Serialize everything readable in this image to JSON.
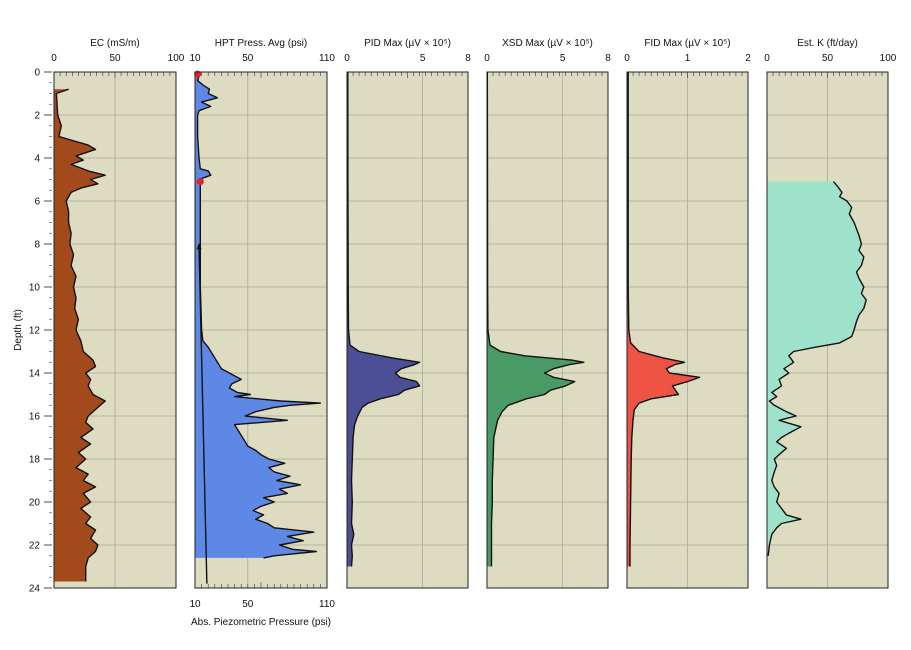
{
  "chart_data": {
    "type": "line",
    "depth_axis": {
      "label": "Depth (ft)",
      "ticks": [
        "0",
        "2",
        "4",
        "6",
        "8",
        "10",
        "12",
        "14",
        "16",
        "18",
        "20",
        "22",
        "24"
      ],
      "range": [
        0,
        24
      ]
    },
    "panels": [
      {
        "id": "ec",
        "title": "EC (mS/m)",
        "top_ticks": [
          "0",
          "50",
          "100"
        ],
        "range": [
          0,
          100
        ],
        "fill_color": "#a24a1c",
        "series": [
          [
            0.8,
            12
          ],
          [
            1.0,
            2
          ],
          [
            2.0,
            3
          ],
          [
            2.5,
            6
          ],
          [
            3.0,
            4
          ],
          [
            3.4,
            28
          ],
          [
            3.6,
            34
          ],
          [
            3.9,
            18
          ],
          [
            4.1,
            24
          ],
          [
            4.3,
            14
          ],
          [
            4.6,
            28
          ],
          [
            4.8,
            42
          ],
          [
            5.0,
            30
          ],
          [
            5.2,
            36
          ],
          [
            5.4,
            22
          ],
          [
            5.6,
            14
          ],
          [
            6.0,
            10
          ],
          [
            6.5,
            12
          ],
          [
            7.0,
            12
          ],
          [
            7.5,
            14
          ],
          [
            8.0,
            13
          ],
          [
            8.5,
            16
          ],
          [
            9.0,
            14
          ],
          [
            9.5,
            18
          ],
          [
            10.0,
            16
          ],
          [
            10.5,
            18
          ],
          [
            11.0,
            17
          ],
          [
            11.5,
            20
          ],
          [
            12.0,
            18
          ],
          [
            12.5,
            22
          ],
          [
            13.0,
            24
          ],
          [
            13.4,
            32
          ],
          [
            13.7,
            34
          ],
          [
            14.0,
            26
          ],
          [
            14.3,
            30
          ],
          [
            14.6,
            28
          ],
          [
            15.0,
            32
          ],
          [
            15.3,
            42
          ],
          [
            15.6,
            36
          ],
          [
            16.0,
            28
          ],
          [
            16.3,
            26
          ],
          [
            16.6,
            32
          ],
          [
            17.0,
            22
          ],
          [
            17.3,
            30
          ],
          [
            17.7,
            20
          ],
          [
            18.0,
            26
          ],
          [
            18.4,
            18
          ],
          [
            18.7,
            28
          ],
          [
            19.0,
            24
          ],
          [
            19.3,
            34
          ],
          [
            19.6,
            24
          ],
          [
            20.0,
            30
          ],
          [
            20.3,
            22
          ],
          [
            20.7,
            30
          ],
          [
            21.0,
            26
          ],
          [
            21.3,
            34
          ],
          [
            21.7,
            30
          ],
          [
            22.0,
            36
          ],
          [
            22.3,
            34
          ],
          [
            22.6,
            28
          ],
          [
            23.0,
            26
          ],
          [
            23.5,
            26
          ],
          [
            23.7,
            26
          ]
        ]
      },
      {
        "id": "hpt",
        "title": "HPT Press. Avg (psi)",
        "top_ticks": [
          "10",
          "50",
          "110"
        ],
        "bottom_ticks": [
          "10",
          "50",
          "110"
        ],
        "bottom_label": "Abs. Piezometric Pressure (psi)",
        "range": [
          10,
          110
        ],
        "fill_color": "#5e88e6",
        "series": [
          [
            0,
            12
          ],
          [
            0.2,
            13
          ],
          [
            0.4,
            12
          ],
          [
            0.6,
            16
          ],
          [
            0.8,
            21
          ],
          [
            1.0,
            20
          ],
          [
            1.2,
            27
          ],
          [
            1.4,
            15
          ],
          [
            1.6,
            22
          ],
          [
            1.8,
            13
          ],
          [
            2.0,
            12
          ],
          [
            3.0,
            12
          ],
          [
            4.0,
            13
          ],
          [
            4.5,
            14
          ],
          [
            4.6,
            20
          ],
          [
            4.8,
            22
          ],
          [
            5.0,
            13
          ],
          [
            5.2,
            14
          ],
          [
            6.0,
            14
          ],
          [
            8.0,
            14
          ],
          [
            10.0,
            14
          ],
          [
            12.0,
            15
          ],
          [
            12.5,
            16
          ],
          [
            12.8,
            20
          ],
          [
            13.0,
            22
          ],
          [
            13.4,
            26
          ],
          [
            13.6,
            28
          ],
          [
            13.8,
            30
          ],
          [
            14.0,
            36
          ],
          [
            14.3,
            45
          ],
          [
            14.5,
            38
          ],
          [
            14.7,
            36
          ],
          [
            14.9,
            42
          ],
          [
            15.0,
            52
          ],
          [
            15.1,
            40
          ],
          [
            15.3,
            75
          ],
          [
            15.4,
            105
          ],
          [
            15.5,
            82
          ],
          [
            15.6,
            70
          ],
          [
            15.8,
            56
          ],
          [
            16.0,
            48
          ],
          [
            16.1,
            64
          ],
          [
            16.2,
            80
          ],
          [
            16.4,
            40
          ],
          [
            16.6,
            42
          ],
          [
            16.8,
            44
          ],
          [
            17.0,
            46
          ],
          [
            17.2,
            48
          ],
          [
            17.4,
            50
          ],
          [
            17.6,
            56
          ],
          [
            17.8,
            60
          ],
          [
            18.0,
            66
          ],
          [
            18.2,
            78
          ],
          [
            18.4,
            66
          ],
          [
            18.6,
            70
          ],
          [
            18.8,
            82
          ],
          [
            19.0,
            72
          ],
          [
            19.2,
            90
          ],
          [
            19.4,
            74
          ],
          [
            19.6,
            80
          ],
          [
            19.8,
            62
          ],
          [
            20.0,
            70
          ],
          [
            20.2,
            60
          ],
          [
            20.4,
            54
          ],
          [
            20.6,
            62
          ],
          [
            20.8,
            56
          ],
          [
            21.0,
            65
          ],
          [
            21.2,
            70
          ],
          [
            21.4,
            100
          ],
          [
            21.6,
            80
          ],
          [
            21.8,
            92
          ],
          [
            22.0,
            74
          ],
          [
            22.2,
            84
          ],
          [
            22.3,
            102
          ],
          [
            22.5,
            70
          ],
          [
            22.6,
            62
          ]
        ],
        "markers": [
          [
            0.1,
            12
          ],
          [
            5.1,
            14
          ]
        ],
        "hydrostatic_line": [
          [
            8.0,
            13.0
          ],
          [
            23.8,
            19.0
          ]
        ]
      },
      {
        "id": "pid",
        "title": "PID Max (µV × 10⁵)",
        "top_ticks": [
          "0",
          "5",
          "8"
        ],
        "range": [
          0,
          8
        ],
        "fill_color": "#4c4f96",
        "series": [
          [
            0,
            0.05
          ],
          [
            5,
            0.06
          ],
          [
            10,
            0.08
          ],
          [
            12,
            0.1
          ],
          [
            12.7,
            0.2
          ],
          [
            13.0,
            0.8
          ],
          [
            13.3,
            3.0
          ],
          [
            13.5,
            4.8
          ],
          [
            13.6,
            4.5
          ],
          [
            13.8,
            3.6
          ],
          [
            14.0,
            3.2
          ],
          [
            14.2,
            3.5
          ],
          [
            14.4,
            4.6
          ],
          [
            14.6,
            4.8
          ],
          [
            14.8,
            3.8
          ],
          [
            15.0,
            3.4
          ],
          [
            15.2,
            2.2
          ],
          [
            15.4,
            1.4
          ],
          [
            15.6,
            1.0
          ],
          [
            16.0,
            0.7
          ],
          [
            16.4,
            0.5
          ],
          [
            17.0,
            0.4
          ],
          [
            18.0,
            0.35
          ],
          [
            19.0,
            0.3
          ],
          [
            20.0,
            0.35
          ],
          [
            21.0,
            0.3
          ],
          [
            21.5,
            0.45
          ],
          [
            22.0,
            0.3
          ],
          [
            22.5,
            0.35
          ],
          [
            23.0,
            0.3
          ]
        ]
      },
      {
        "id": "xsd",
        "title": "XSD Max (µV × 10⁵)",
        "top_ticks": [
          "0",
          "5",
          "8"
        ],
        "range": [
          0,
          8
        ],
        "fill_color": "#4a9a66",
        "series": [
          [
            0,
            0.02
          ],
          [
            5,
            0.03
          ],
          [
            10,
            0.04
          ],
          [
            12,
            0.06
          ],
          [
            12.7,
            0.2
          ],
          [
            13.0,
            0.9
          ],
          [
            13.2,
            2.5
          ],
          [
            13.4,
            5.6
          ],
          [
            13.5,
            6.4
          ],
          [
            13.6,
            5.5
          ],
          [
            13.8,
            4.4
          ],
          [
            14.0,
            3.8
          ],
          [
            14.2,
            4.4
          ],
          [
            14.4,
            5.8
          ],
          [
            14.6,
            5.2
          ],
          [
            14.8,
            4.2
          ],
          [
            15.0,
            3.8
          ],
          [
            15.2,
            2.6
          ],
          [
            15.5,
            1.4
          ],
          [
            15.8,
            1.0
          ],
          [
            16.2,
            0.7
          ],
          [
            17.0,
            0.45
          ],
          [
            18.0,
            0.4
          ],
          [
            19.0,
            0.35
          ],
          [
            20.0,
            0.35
          ],
          [
            21.0,
            0.3
          ],
          [
            22.0,
            0.3
          ],
          [
            23.0,
            0.3
          ]
        ]
      },
      {
        "id": "fid",
        "title": "FID Max (µV × 10⁵)",
        "top_ticks": [
          "0",
          "1",
          "2"
        ],
        "range": [
          0,
          2
        ],
        "fill_color": "#ee5344",
        "series": [
          [
            0,
            0.02
          ],
          [
            5,
            0.02
          ],
          [
            10,
            0.02
          ],
          [
            12,
            0.03
          ],
          [
            12.6,
            0.06
          ],
          [
            13.0,
            0.2
          ],
          [
            13.3,
            0.6
          ],
          [
            13.5,
            0.95
          ],
          [
            13.6,
            0.8
          ],
          [
            13.8,
            0.65
          ],
          [
            14.0,
            0.7
          ],
          [
            14.2,
            1.2
          ],
          [
            14.4,
            1.0
          ],
          [
            14.6,
            0.75
          ],
          [
            14.8,
            0.8
          ],
          [
            15.0,
            0.85
          ],
          [
            15.2,
            0.4
          ],
          [
            15.4,
            0.2
          ],
          [
            15.7,
            0.12
          ],
          [
            16.2,
            0.1
          ],
          [
            17.0,
            0.08
          ],
          [
            18.0,
            0.07
          ],
          [
            20.0,
            0.06
          ],
          [
            22.0,
            0.05
          ],
          [
            23.0,
            0.05
          ]
        ]
      },
      {
        "id": "estk",
        "title": "Est. K (ft/day)",
        "top_ticks": [
          "0",
          "50",
          "100"
        ],
        "range": [
          0,
          100
        ],
        "fill_color": "#9ee2cc",
        "series": [
          [
            5.1,
            55
          ],
          [
            5.3,
            58
          ],
          [
            5.6,
            62
          ],
          [
            5.8,
            60
          ],
          [
            6.0,
            66
          ],
          [
            6.3,
            70
          ],
          [
            6.6,
            68
          ],
          [
            7.0,
            72
          ],
          [
            7.3,
            74
          ],
          [
            7.6,
            76
          ],
          [
            8.0,
            78
          ],
          [
            8.3,
            76
          ],
          [
            8.6,
            80
          ],
          [
            9.0,
            78
          ],
          [
            9.3,
            74
          ],
          [
            9.6,
            76
          ],
          [
            10.0,
            80
          ],
          [
            10.3,
            78
          ],
          [
            10.6,
            82
          ],
          [
            11.0,
            80
          ],
          [
            11.3,
            76
          ],
          [
            11.6,
            74
          ],
          [
            12.0,
            72
          ],
          [
            12.3,
            70
          ],
          [
            12.6,
            60
          ],
          [
            12.8,
            40
          ],
          [
            13.0,
            22
          ],
          [
            13.2,
            18
          ],
          [
            13.5,
            22
          ],
          [
            13.8,
            14
          ],
          [
            14.0,
            18
          ],
          [
            14.3,
            10
          ],
          [
            14.6,
            12
          ],
          [
            14.9,
            4
          ],
          [
            15.1,
            8
          ],
          [
            15.3,
            2
          ],
          [
            15.5,
            6
          ],
          [
            15.8,
            16
          ],
          [
            16.0,
            24
          ],
          [
            16.2,
            10
          ],
          [
            16.5,
            28
          ],
          [
            16.8,
            18
          ],
          [
            17.0,
            12
          ],
          [
            17.2,
            8
          ],
          [
            17.5,
            16
          ],
          [
            17.8,
            10
          ],
          [
            18.0,
            6
          ],
          [
            18.3,
            8
          ],
          [
            18.6,
            6
          ],
          [
            19.0,
            4
          ],
          [
            19.3,
            6
          ],
          [
            19.6,
            10
          ],
          [
            20.0,
            8
          ],
          [
            20.3,
            12
          ],
          [
            20.6,
            16
          ],
          [
            20.8,
            28
          ],
          [
            21.0,
            12
          ],
          [
            21.2,
            8
          ],
          [
            21.5,
            4
          ],
          [
            22.0,
            2
          ],
          [
            22.5,
            1
          ]
        ]
      }
    ]
  }
}
